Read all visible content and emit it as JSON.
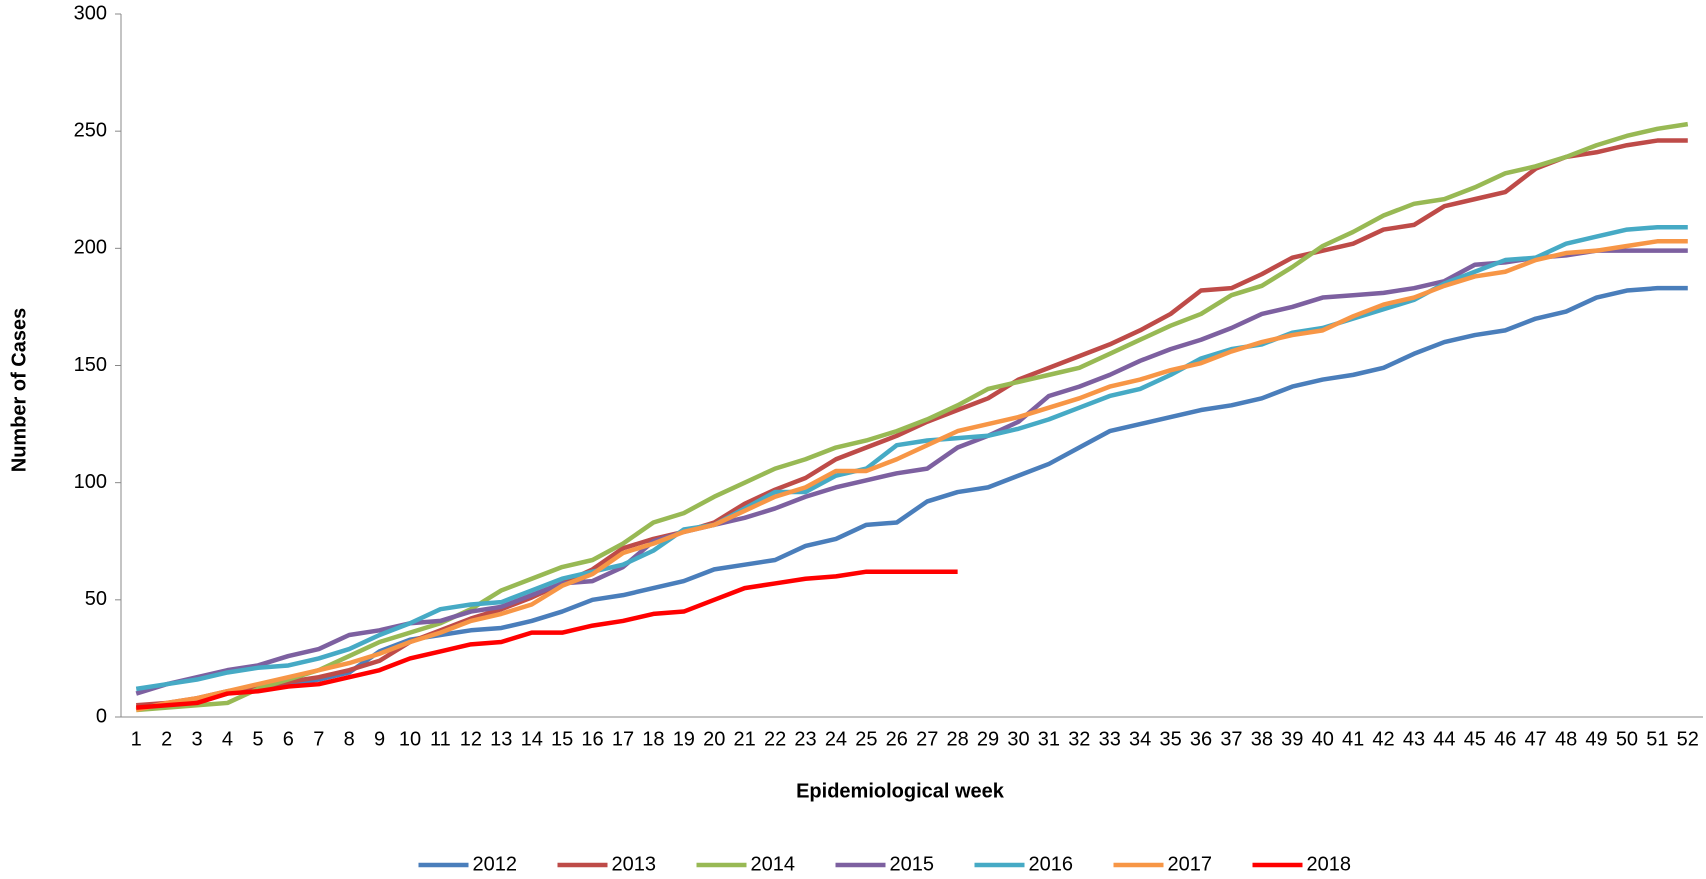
{
  "chart_data": {
    "type": "line",
    "x_label": "Epidemiological week",
    "y_label": "Number of Cases",
    "categories": [
      "1",
      "2",
      "3",
      "4",
      "5",
      "6",
      "7",
      "8",
      "9",
      "10",
      "11",
      "12",
      "13",
      "14",
      "15",
      "16",
      "17",
      "18",
      "19",
      "20",
      "21",
      "22",
      "23",
      "24",
      "25",
      "26",
      "27",
      "28",
      "29",
      "30",
      "31",
      "32",
      "33",
      "34",
      "35",
      "36",
      "37",
      "38",
      "39",
      "40",
      "41",
      "42",
      "43",
      "44",
      "45",
      "46",
      "47",
      "48",
      "49",
      "50",
      "51",
      "52"
    ],
    "series": [
      {
        "name": "2012",
        "color": "#4a7ebb",
        "values": [
          4,
          5,
          7,
          10,
          12,
          14,
          16,
          19,
          28,
          33,
          35,
          37,
          38,
          41,
          45,
          50,
          52,
          55,
          58,
          63,
          65,
          67,
          73,
          76,
          82,
          83,
          92,
          96,
          98,
          103,
          108,
          115,
          122,
          125,
          128,
          131,
          133,
          136,
          141,
          144,
          146,
          149,
          155,
          160,
          163,
          165,
          170,
          173,
          179,
          182,
          183,
          183
        ]
      },
      {
        "name": "2013",
        "color": "#be4b48",
        "values": [
          5,
          6,
          8,
          11,
          13,
          15,
          17,
          20,
          24,
          32,
          37,
          42,
          46,
          51,
          57,
          63,
          72,
          76,
          79,
          83,
          91,
          97,
          102,
          110,
          115,
          120,
          126,
          131,
          136,
          144,
          149,
          154,
          159,
          165,
          172,
          182,
          183,
          189,
          196,
          199,
          202,
          208,
          210,
          218,
          221,
          224,
          234,
          239,
          241,
          244,
          246,
          246
        ]
      },
      {
        "name": "2014",
        "color": "#98b954",
        "values": [
          3,
          4,
          5,
          6,
          12,
          16,
          20,
          26,
          32,
          36,
          40,
          46,
          54,
          59,
          64,
          67,
          74,
          83,
          87,
          94,
          100,
          106,
          110,
          115,
          118,
          122,
          127,
          133,
          140,
          143,
          146,
          149,
          155,
          161,
          167,
          172,
          180,
          184,
          192,
          201,
          207,
          214,
          219,
          221,
          226,
          232,
          235,
          239,
          244,
          248,
          251,
          253
        ]
      },
      {
        "name": "2015",
        "color": "#7d60a0",
        "values": [
          10,
          14,
          17,
          20,
          22,
          26,
          29,
          35,
          37,
          40,
          41,
          45,
          47,
          52,
          57,
          58,
          64,
          75,
          79,
          82,
          85,
          89,
          94,
          98,
          101,
          104,
          106,
          115,
          120,
          126,
          137,
          141,
          146,
          152,
          157,
          161,
          166,
          172,
          175,
          179,
          180,
          181,
          183,
          186,
          193,
          194,
          196,
          197,
          199,
          199,
          199,
          199
        ]
      },
      {
        "name": "2016",
        "color": "#46aac5",
        "values": [
          12,
          14,
          16,
          19,
          21,
          22,
          25,
          29,
          35,
          40,
          46,
          48,
          49,
          54,
          59,
          62,
          65,
          71,
          80,
          82,
          89,
          96,
          96,
          103,
          106,
          116,
          118,
          119,
          120,
          123,
          127,
          132,
          137,
          140,
          146,
          153,
          157,
          159,
          164,
          166,
          170,
          174,
          178,
          185,
          190,
          195,
          196,
          202,
          205,
          208,
          209,
          209
        ]
      },
      {
        "name": "2017",
        "color": "#f79646",
        "values": [
          3,
          6,
          8,
          11,
          14,
          17,
          20,
          23,
          27,
          32,
          36,
          41,
          44,
          48,
          56,
          61,
          70,
          74,
          79,
          82,
          88,
          94,
          98,
          105,
          105,
          110,
          116,
          122,
          125,
          128,
          132,
          136,
          141,
          144,
          148,
          151,
          156,
          160,
          163,
          165,
          171,
          176,
          179,
          184,
          188,
          190,
          195,
          198,
          199,
          201,
          203,
          203
        ]
      },
      {
        "name": "2018",
        "color": "#ff0000",
        "values": [
          4,
          5,
          6,
          10,
          11,
          13,
          14,
          17,
          20,
          25,
          28,
          31,
          32,
          36,
          36,
          39,
          41,
          44,
          45,
          50,
          55,
          57,
          59,
          60,
          62,
          62,
          62,
          62,
          null,
          null,
          null,
          null,
          null,
          null,
          null,
          null,
          null,
          null,
          null,
          null,
          null,
          null,
          null,
          null,
          null,
          null,
          null,
          null,
          null,
          null,
          null,
          null
        ]
      }
    ],
    "ylim": [
      0,
      300
    ],
    "yticks": [
      0,
      50,
      100,
      150,
      200,
      250,
      300
    ],
    "grid": false,
    "legend": "bottom"
  }
}
